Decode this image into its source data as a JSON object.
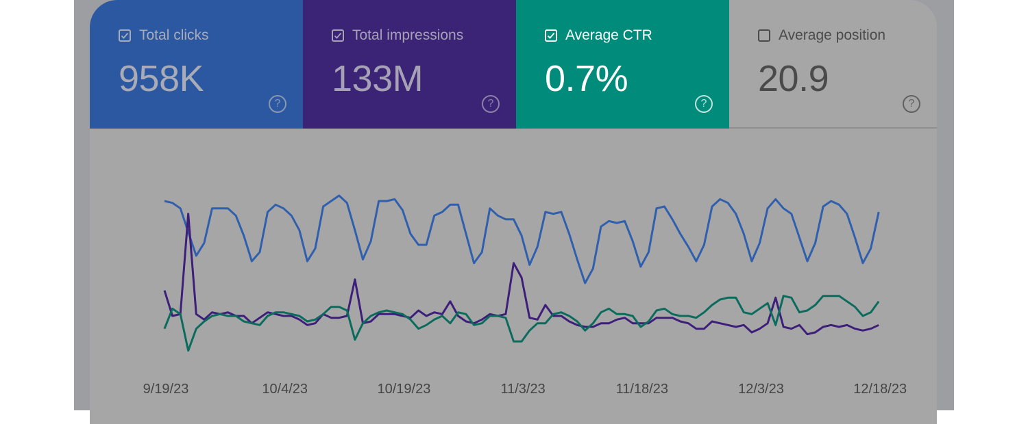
{
  "metrics": [
    {
      "label": "Total clicks",
      "value": "958K",
      "checked": true,
      "color": "#2b58a0",
      "help_icon": "help-circle-icon"
    },
    {
      "label": "Total impressions",
      "value": "133M",
      "checked": true,
      "color": "#3b2376",
      "help_icon": "help-circle-icon"
    },
    {
      "label": "Average CTR",
      "value": "0.7%",
      "checked": true,
      "color": "#008b7b",
      "help_icon": "help-circle-icon"
    },
    {
      "label": "Average position",
      "value": "20.9",
      "checked": false,
      "color": "#a6a6a6",
      "help_icon": "help-circle-icon"
    }
  ],
  "help_glyph": "?",
  "chart_data": {
    "type": "line",
    "title": "",
    "xlabel": "",
    "ylabel": "",
    "grid": false,
    "x_range": [
      "9/19/23",
      "12/19/23"
    ],
    "x_tick_labels": [
      "9/19/23",
      "10/4/23",
      "10/19/23",
      "11/3/23",
      "11/18/23",
      "12/3/23",
      "12/18/23"
    ],
    "y_scale_note": "relative level, no y axis printed",
    "series": [
      {
        "key": "clicks",
        "color": "#2f5fad",
        "values": [
          91,
          90,
          87,
          74,
          61,
          68,
          87,
          87,
          87,
          83,
          72,
          58,
          63,
          85,
          89,
          87,
          83,
          75,
          58,
          65,
          88,
          91,
          94,
          90,
          75,
          59,
          69,
          91,
          91,
          92,
          86,
          73,
          67,
          67,
          83,
          85,
          89,
          89,
          73,
          57,
          63,
          87,
          83,
          81,
          81,
          72,
          56,
          66,
          85,
          84,
          85,
          73,
          59,
          46,
          54,
          77,
          80,
          79,
          80,
          69,
          55,
          63,
          87,
          88,
          81,
          73,
          66,
          58,
          67,
          88,
          92,
          90,
          84,
          73,
          58,
          68,
          87,
          92,
          87,
          84,
          71,
          58,
          68,
          88,
          91,
          89,
          84,
          71,
          57,
          65,
          85
        ]
      },
      {
        "key": "impressions",
        "color": "#3d1f7a",
        "values": [
          42,
          28,
          29,
          84,
          29,
          26,
          30,
          29,
          30,
          28,
          28,
          24,
          27,
          30,
          29,
          28,
          28,
          26,
          23,
          24,
          29,
          27,
          27,
          28,
          48,
          24,
          25,
          29,
          29,
          29,
          28,
          27,
          31,
          28,
          30,
          29,
          36,
          28,
          25,
          24,
          26,
          29,
          28,
          29,
          57,
          49,
          27,
          26,
          34,
          28,
          28,
          25,
          23,
          22,
          22,
          24,
          24,
          26,
          27,
          24,
          24,
          24,
          27,
          27,
          27,
          25,
          24,
          21,
          21,
          25,
          24,
          23,
          22,
          23,
          19,
          21,
          24,
          38,
          22,
          21,
          23,
          18,
          19,
          22,
          23,
          22,
          23,
          21,
          20,
          21,
          23
        ]
      },
      {
        "key": "ctr",
        "color": "#0b6b5c",
        "values": [
          21,
          32,
          29,
          9,
          21,
          25,
          28,
          29,
          28,
          28,
          25,
          24,
          23,
          28,
          30,
          30,
          29,
          28,
          25,
          26,
          29,
          33,
          33,
          31,
          15,
          24,
          28,
          30,
          31,
          30,
          29,
          26,
          21,
          23,
          26,
          28,
          24,
          30,
          29,
          23,
          24,
          28,
          28,
          27,
          14,
          14,
          20,
          24,
          24,
          29,
          30,
          28,
          25,
          20,
          24,
          30,
          32,
          29,
          29,
          28,
          22,
          25,
          31,
          32,
          29,
          28,
          28,
          27,
          30,
          34,
          37,
          38,
          38,
          30,
          29,
          32,
          35,
          23,
          39,
          38,
          30,
          31,
          34,
          39,
          39,
          39,
          36,
          33,
          28,
          30,
          36
        ]
      }
    ]
  }
}
